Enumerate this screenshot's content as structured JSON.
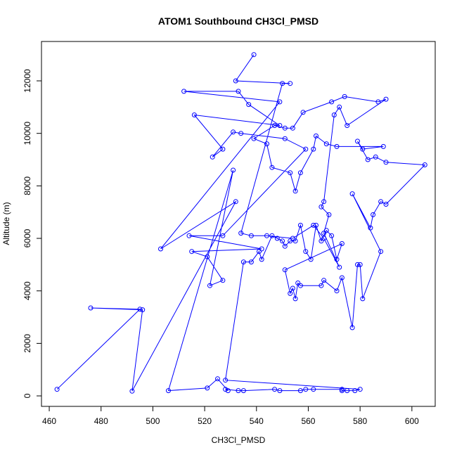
{
  "chart_data": {
    "type": "scatter",
    "title": "ATOM1 Southbound CH3Cl_PMSD",
    "xlabel": "CH3Cl_PMSD",
    "ylabel": "Altitude (m)",
    "xlim": [
      457,
      609
    ],
    "ylim": [
      -400,
      13500
    ],
    "xticks": [
      460,
      480,
      500,
      520,
      540,
      560,
      580,
      600
    ],
    "yticks": [
      0,
      2000,
      4000,
      6000,
      8000,
      10000,
      12000
    ],
    "grid": false,
    "series": [
      {
        "color": "#0000ff",
        "points": [
          [
            463,
            250
          ],
          [
            495,
            3300
          ],
          [
            476,
            3350
          ],
          [
            496,
            3280
          ],
          [
            492,
            180
          ],
          [
            532,
            7400
          ],
          [
            503,
            5600
          ],
          [
            549,
            11200
          ],
          [
            512,
            11600
          ],
          [
            533,
            11600
          ],
          [
            537,
            11100
          ],
          [
            549,
            10300
          ],
          [
            516,
            10700
          ],
          [
            527,
            9400
          ],
          [
            523,
            9100
          ],
          [
            531,
            10050
          ],
          [
            534,
            10000
          ],
          [
            551,
            9800
          ],
          [
            559,
            9400
          ],
          [
            527,
            6100
          ],
          [
            514,
            6100
          ],
          [
            542,
            5600
          ],
          [
            515,
            5500
          ],
          [
            521,
            5300
          ],
          [
            527,
            4400
          ],
          [
            522,
            4200
          ],
          [
            531,
            8600
          ],
          [
            506,
            200
          ],
          [
            521,
            300
          ],
          [
            525,
            650
          ],
          [
            529,
            200
          ],
          [
            528,
            250
          ],
          [
            533,
            200
          ],
          [
            535,
            200
          ],
          [
            547,
            250
          ],
          [
            549,
            200
          ],
          [
            557,
            200
          ],
          [
            559,
            250
          ],
          [
            562,
            250
          ],
          [
            573,
            250
          ],
          [
            573,
            200
          ],
          [
            575,
            200
          ],
          [
            578,
            200
          ],
          [
            580,
            250
          ],
          [
            528,
            600
          ],
          [
            535,
            5100
          ],
          [
            538,
            5100
          ],
          [
            541,
            5500
          ],
          [
            542,
            5200
          ],
          [
            546,
            6100
          ],
          [
            548,
            6000
          ],
          [
            550,
            5900
          ],
          [
            551,
            5700
          ],
          [
            553,
            5900
          ],
          [
            555,
            5900
          ],
          [
            557,
            6500
          ],
          [
            559,
            5500
          ],
          [
            561,
            5200
          ],
          [
            563,
            6500
          ],
          [
            565,
            5900
          ],
          [
            567,
            6300
          ],
          [
            569,
            6100
          ],
          [
            571,
            5200
          ],
          [
            573,
            5800
          ],
          [
            551,
            4800
          ],
          [
            553,
            3900
          ],
          [
            554,
            4100
          ],
          [
            555,
            3700
          ],
          [
            556,
            4300
          ],
          [
            557,
            4200
          ],
          [
            565,
            4200
          ],
          [
            566,
            4400
          ],
          [
            571,
            4000
          ],
          [
            573,
            4500
          ],
          [
            577,
            2600
          ],
          [
            579,
            5000
          ],
          [
            580,
            5000
          ],
          [
            581,
            3700
          ],
          [
            588,
            5500
          ],
          [
            577,
            7700
          ],
          [
            584,
            6400
          ],
          [
            585,
            6900
          ],
          [
            588,
            7400
          ],
          [
            590,
            7300
          ],
          [
            605,
            8800
          ],
          [
            590,
            8900
          ],
          [
            586,
            9100
          ],
          [
            583,
            9000
          ],
          [
            579,
            9700
          ],
          [
            581,
            9400
          ],
          [
            589,
            9500
          ],
          [
            571,
            9500
          ],
          [
            567,
            9600
          ],
          [
            563,
            9900
          ],
          [
            562,
            9400
          ],
          [
            557,
            8500
          ],
          [
            555,
            7800
          ],
          [
            553,
            8500
          ],
          [
            546,
            8700
          ],
          [
            544,
            9600
          ],
          [
            539,
            9800
          ],
          [
            547,
            10300
          ],
          [
            551,
            10200
          ],
          [
            554,
            10200
          ],
          [
            558,
            10800
          ],
          [
            569,
            11200
          ],
          [
            574,
            11400
          ],
          [
            587,
            11200
          ],
          [
            590,
            11300
          ],
          [
            575,
            10300
          ],
          [
            572,
            11000
          ],
          [
            570,
            10700
          ],
          [
            566,
            7400
          ],
          [
            565,
            7200
          ],
          [
            568,
            6900
          ],
          [
            566,
            6200
          ],
          [
            572,
            4900
          ],
          [
            566,
            6000
          ],
          [
            562,
            6500
          ],
          [
            554,
            6000
          ],
          [
            544,
            6100
          ],
          [
            538,
            6100
          ],
          [
            534,
            6200
          ],
          [
            550,
            11900
          ],
          [
            553,
            11900
          ],
          [
            532,
            12000
          ],
          [
            539,
            13000
          ]
        ]
      }
    ]
  }
}
